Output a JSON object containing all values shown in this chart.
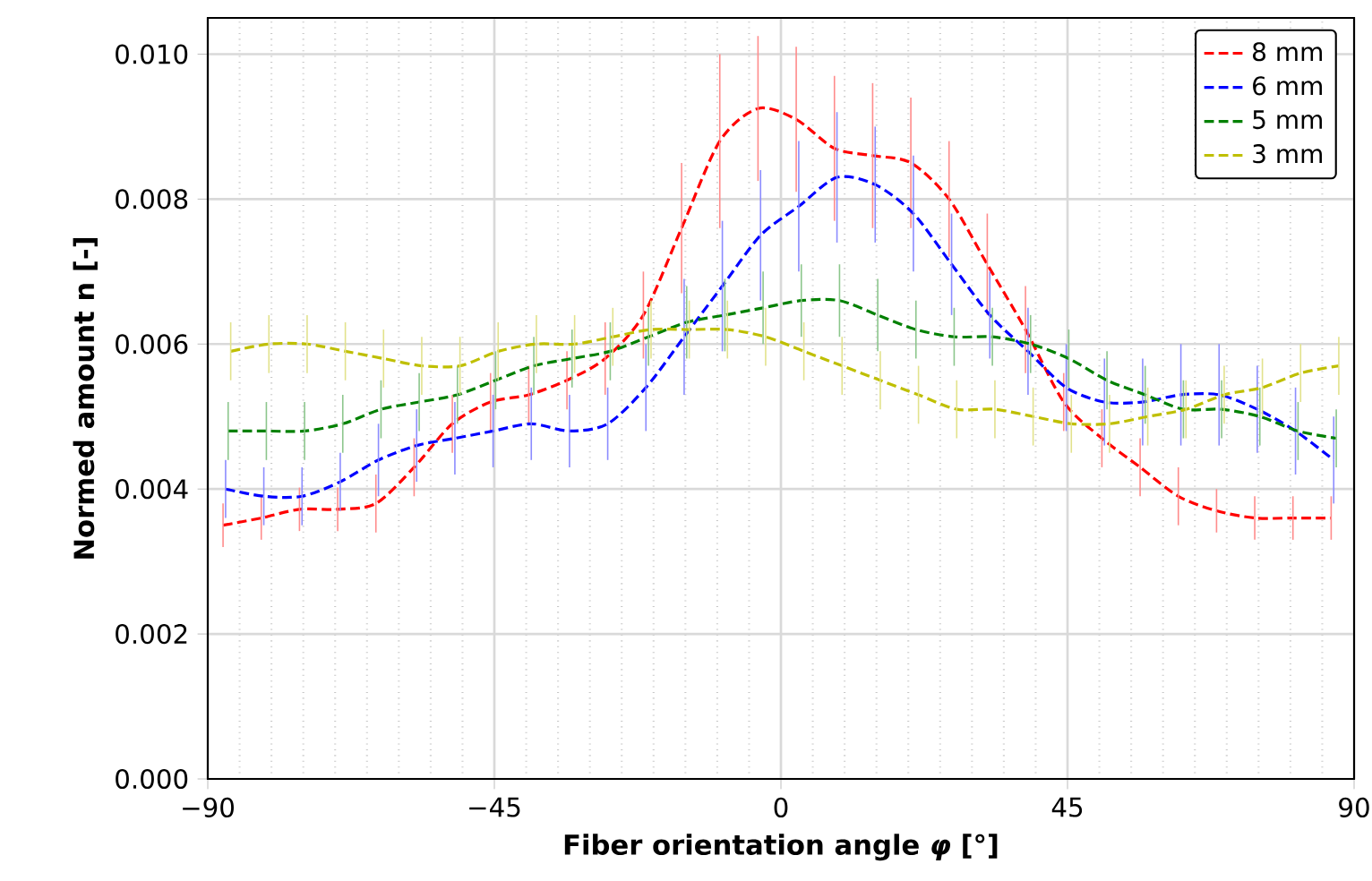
{
  "chart_data": {
    "type": "line",
    "xlabel": "Fiber orientation angle *φ* [°]",
    "ylabel": "Normed amount n [-]",
    "series": [
      {
        "name": "8 mm",
        "color": "#ff0000",
        "x": [
          -87.6,
          -81.6,
          -75.6,
          -69.6,
          -63.6,
          -57.6,
          -51.6,
          -45.6,
          -39.6,
          -33.6,
          -27.6,
          -21.6,
          -15.6,
          -9.6,
          -3.6,
          2.4,
          8.4,
          14.4,
          20.4,
          26.4,
          32.4,
          38.4,
          44.4,
          50.4,
          56.4,
          62.4,
          68.4,
          74.4,
          80.4,
          86.4
        ],
        "values": [
          0.0035,
          0.0036,
          0.00372,
          0.00372,
          0.0038,
          0.0043,
          0.0049,
          0.0052,
          0.0053,
          0.0055,
          0.0058,
          0.0064,
          0.0076,
          0.0088,
          0.00925,
          0.0091,
          0.0087,
          0.0086,
          0.0085,
          0.008,
          0.0071,
          0.0062,
          0.0052,
          0.0047,
          0.0043,
          0.0039,
          0.0037,
          0.0036,
          0.0036,
          0.0036
        ],
        "errors": [
          0.0003,
          0.0003,
          0.0003,
          0.0003,
          0.0004,
          0.0004,
          0.0004,
          0.0004,
          0.0004,
          0.0004,
          0.0005,
          0.0006,
          0.0009,
          0.0012,
          0.001,
          0.001,
          0.001,
          0.001,
          0.0009,
          0.0008,
          0.0007,
          0.0006,
          0.0004,
          0.0004,
          0.0004,
          0.0004,
          0.0003,
          0.0003,
          0.0003,
          0.0003
        ]
      },
      {
        "name": "6 mm",
        "color": "#0000ff",
        "x": [
          -87.2,
          -81.2,
          -75.2,
          -69.2,
          -63.2,
          -57.2,
          -51.2,
          -45.2,
          -39.2,
          -33.2,
          -27.2,
          -21.2,
          -15.2,
          -9.2,
          -3.2,
          2.8,
          8.8,
          14.8,
          20.8,
          26.8,
          32.8,
          38.8,
          44.8,
          50.8,
          56.8,
          62.8,
          68.8,
          74.8,
          80.8,
          86.8
        ],
        "values": [
          0.004,
          0.0039,
          0.0039,
          0.0041,
          0.0044,
          0.0046,
          0.0047,
          0.0048,
          0.0049,
          0.0048,
          0.0049,
          0.0054,
          0.0061,
          0.0068,
          0.0075,
          0.0079,
          0.0083,
          0.0082,
          0.0078,
          0.0071,
          0.0064,
          0.0059,
          0.0054,
          0.0052,
          0.0052,
          0.0053,
          0.0053,
          0.0051,
          0.0048,
          0.0044
        ],
        "errors": [
          0.0004,
          0.0004,
          0.0004,
          0.0004,
          0.0005,
          0.0005,
          0.0005,
          0.0005,
          0.0005,
          0.0005,
          0.0005,
          0.0006,
          0.0008,
          0.0009,
          0.0009,
          0.0009,
          0.0009,
          0.0008,
          0.0008,
          0.0007,
          0.0006,
          0.0006,
          0.0006,
          0.0006,
          0.0006,
          0.0007,
          0.0007,
          0.0006,
          0.0006,
          0.0006
        ]
      },
      {
        "name": "5 mm",
        "color": "#008000",
        "x": [
          -86.8,
          -80.8,
          -74.8,
          -68.8,
          -62.8,
          -56.8,
          -50.8,
          -44.8,
          -38.8,
          -32.8,
          -26.8,
          -20.8,
          -14.8,
          -8.8,
          -2.8,
          3.2,
          9.2,
          15.2,
          21.2,
          27.2,
          33.2,
          39.2,
          45.2,
          51.2,
          57.2,
          63.2,
          69.2,
          75.2,
          81.2,
          87.2
        ],
        "values": [
          0.0048,
          0.0048,
          0.0048,
          0.0049,
          0.0051,
          0.0052,
          0.0053,
          0.0055,
          0.0057,
          0.0058,
          0.0059,
          0.0061,
          0.0063,
          0.0064,
          0.0065,
          0.0066,
          0.0066,
          0.0064,
          0.0062,
          0.0061,
          0.0061,
          0.006,
          0.0058,
          0.0055,
          0.0053,
          0.0051,
          0.0051,
          0.005,
          0.0048,
          0.0047
        ],
        "errors": [
          0.0004,
          0.0004,
          0.0004,
          0.0004,
          0.0004,
          0.0004,
          0.0004,
          0.0004,
          0.0004,
          0.0004,
          0.0004,
          0.0004,
          0.0005,
          0.0005,
          0.0005,
          0.0005,
          0.0005,
          0.0005,
          0.0004,
          0.0004,
          0.0004,
          0.0004,
          0.0004,
          0.0004,
          0.0004,
          0.0004,
          0.0004,
          0.0004,
          0.0004,
          0.0004
        ]
      },
      {
        "name": "3 mm",
        "color": "#bfbf00",
        "x": [
          -86.4,
          -80.4,
          -74.4,
          -68.4,
          -62.4,
          -56.4,
          -50.4,
          -44.4,
          -38.4,
          -32.4,
          -26.4,
          -20.4,
          -14.4,
          -8.4,
          -2.4,
          3.6,
          9.6,
          15.6,
          21.6,
          27.6,
          33.6,
          39.6,
          45.6,
          51.6,
          57.6,
          63.6,
          69.6,
          75.6,
          81.6,
          87.6
        ],
        "values": [
          0.0059,
          0.006,
          0.006,
          0.0059,
          0.0058,
          0.0057,
          0.0057,
          0.0059,
          0.006,
          0.006,
          0.0061,
          0.0062,
          0.0062,
          0.0062,
          0.0061,
          0.0059,
          0.0057,
          0.0055,
          0.0053,
          0.0051,
          0.0051,
          0.005,
          0.0049,
          0.0049,
          0.005,
          0.0051,
          0.0053,
          0.0054,
          0.0056,
          0.0057
        ],
        "errors": [
          0.0004,
          0.0004,
          0.0004,
          0.0004,
          0.0004,
          0.0004,
          0.0004,
          0.0004,
          0.0004,
          0.0004,
          0.0004,
          0.0004,
          0.0004,
          0.0004,
          0.0004,
          0.0004,
          0.0004,
          0.0004,
          0.0004,
          0.0004,
          0.0004,
          0.0004,
          0.0004,
          0.0004,
          0.0004,
          0.0004,
          0.0004,
          0.0004,
          0.0004,
          0.0004
        ]
      }
    ],
    "xlim": [
      -90,
      90
    ],
    "ylim": [
      0,
      0.0105
    ],
    "xticks": [
      {
        "value": -90,
        "label": "−90"
      },
      {
        "value": -45,
        "label": "−45"
      },
      0,
      45,
      90
    ],
    "yticks": [
      {
        "value": 0,
        "label": "0.000"
      },
      {
        "value": 0.002,
        "label": "0.002"
      },
      {
        "value": 0.004,
        "label": "0.004"
      },
      {
        "value": 0.006,
        "label": "0.006"
      },
      {
        "value": 0.008,
        "label": "0.008"
      },
      {
        "value": 0.01,
        "label": "0.010"
      }
    ],
    "grid": true,
    "legend": "top right",
    "marker": "none",
    "line_style": "dashed"
  }
}
